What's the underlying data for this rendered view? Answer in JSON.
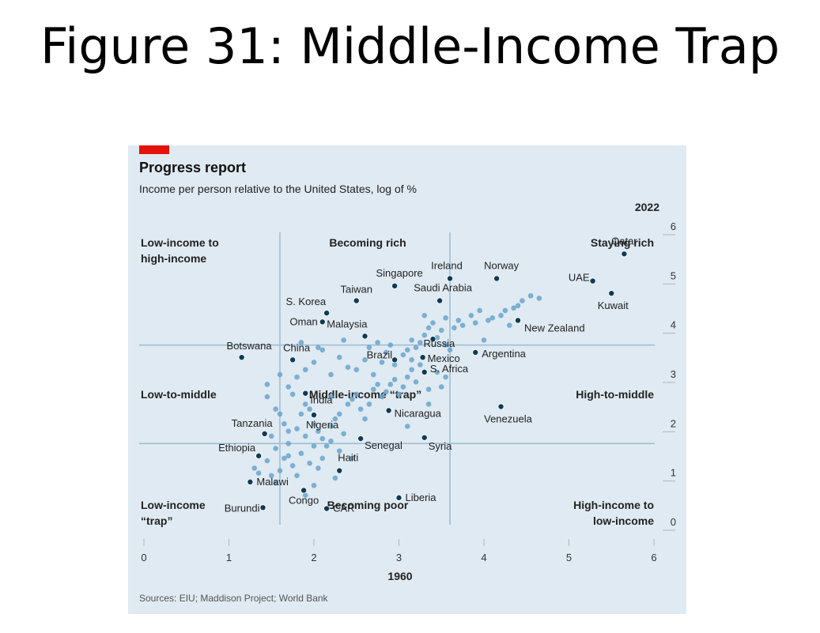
{
  "slide": {
    "title": "Figure 31: Middle-Income Trap"
  },
  "chart_data": {
    "type": "scatter",
    "title": "Progress report",
    "subtitle": "Income per person relative to the United States, log of %",
    "xlabel": "1960",
    "ylabel": "2022",
    "xlim": [
      0,
      6
    ],
    "ylim": [
      0,
      6
    ],
    "x_ticks": [
      "0",
      "1",
      "2",
      "3",
      "4",
      "5",
      "6"
    ],
    "y_ticks": [
      "0",
      "1",
      "2",
      "3",
      "4",
      "5",
      "6"
    ],
    "thresholds": {
      "x": [
        1.6,
        3.6
      ],
      "y": [
        1.6,
        3.6
      ]
    },
    "quadrant_labels": [
      {
        "id": "low-to-high",
        "lines": [
          "Low-income to",
          "high-income"
        ]
      },
      {
        "id": "becoming-rich",
        "lines": [
          "Becoming rich"
        ]
      },
      {
        "id": "staying-rich",
        "lines": [
          "Staying rich"
        ]
      },
      {
        "id": "low-to-middle",
        "lines": [
          "Low-to-middle"
        ]
      },
      {
        "id": "middle-trap",
        "lines": [
          "Middle-income “trap”"
        ]
      },
      {
        "id": "high-to-middle",
        "lines": [
          "High-to-middle"
        ]
      },
      {
        "id": "low-trap",
        "lines": [
          "Low-income",
          "“trap”"
        ]
      },
      {
        "id": "becoming-poor",
        "lines": [
          "Becoming poor"
        ]
      },
      {
        "id": "high-to-low",
        "lines": [
          "High-income to",
          "low-income"
        ]
      }
    ],
    "highlighted": [
      {
        "name": "Qatar",
        "x": 5.65,
        "y": 5.45
      },
      {
        "name": "UAE",
        "x": 5.28,
        "y": 4.9
      },
      {
        "name": "Kuwait",
        "x": 5.5,
        "y": 4.65
      },
      {
        "name": "Norway",
        "x": 4.15,
        "y": 4.95
      },
      {
        "name": "Ireland",
        "x": 3.6,
        "y": 4.95
      },
      {
        "name": "Singapore",
        "x": 2.95,
        "y": 4.8
      },
      {
        "name": "Taiwan",
        "x": 2.5,
        "y": 4.5
      },
      {
        "name": "Saudi Arabia",
        "x": 3.48,
        "y": 4.5
      },
      {
        "name": "S. Korea",
        "x": 2.15,
        "y": 4.25
      },
      {
        "name": "Oman",
        "x": 2.1,
        "y": 4.07
      },
      {
        "name": "Malaysia",
        "x": 2.6,
        "y": 3.78
      },
      {
        "name": "New Zealand",
        "x": 4.4,
        "y": 4.1
      },
      {
        "name": "Russia",
        "x": 3.4,
        "y": 3.72
      },
      {
        "name": "Brazil",
        "x": 2.95,
        "y": 3.3
      },
      {
        "name": "Mexico",
        "x": 3.28,
        "y": 3.35
      },
      {
        "name": "S. Africa",
        "x": 3.3,
        "y": 3.05
      },
      {
        "name": "Argentina",
        "x": 3.9,
        "y": 3.45
      },
      {
        "name": "Botswana",
        "x": 1.15,
        "y": 3.35
      },
      {
        "name": "China",
        "x": 1.75,
        "y": 3.3
      },
      {
        "name": "India",
        "x": 1.9,
        "y": 2.62
      },
      {
        "name": "Nigeria",
        "x": 2.0,
        "y": 2.18
      },
      {
        "name": "Nicaragua",
        "x": 2.88,
        "y": 2.27
      },
      {
        "name": "Venezuela",
        "x": 4.2,
        "y": 2.35
      },
      {
        "name": "Tanzania",
        "x": 1.42,
        "y": 1.8
      },
      {
        "name": "Senegal",
        "x": 2.55,
        "y": 1.7
      },
      {
        "name": "Syria",
        "x": 3.3,
        "y": 1.72
      },
      {
        "name": "Ethiopia",
        "x": 1.35,
        "y": 1.35
      },
      {
        "name": "Haiti",
        "x": 2.3,
        "y": 1.05
      },
      {
        "name": "Malawi",
        "x": 1.25,
        "y": 0.82
      },
      {
        "name": "Congo",
        "x": 1.88,
        "y": 0.65
      },
      {
        "name": "Liberia",
        "x": 3.0,
        "y": 0.5
      },
      {
        "name": "Burundi",
        "x": 1.4,
        "y": 0.3
      },
      {
        "name": "CAR",
        "x": 2.15,
        "y": 0.28
      }
    ],
    "others": [
      [
        1.45,
        2.8
      ],
      [
        1.45,
        2.55
      ],
      [
        1.55,
        2.3
      ],
      [
        1.6,
        2.2
      ],
      [
        1.65,
        2.0
      ],
      [
        1.7,
        1.85
      ],
      [
        1.8,
        1.9
      ],
      [
        1.85,
        2.2
      ],
      [
        1.9,
        2.4
      ],
      [
        1.95,
        2.3
      ],
      [
        2.0,
        2.0
      ],
      [
        2.05,
        1.85
      ],
      [
        2.1,
        1.7
      ],
      [
        2.15,
        1.55
      ],
      [
        2.2,
        1.95
      ],
      [
        2.25,
        2.1
      ],
      [
        2.3,
        2.2
      ],
      [
        2.35,
        1.8
      ],
      [
        2.4,
        2.4
      ],
      [
        2.45,
        2.5
      ],
      [
        2.5,
        2.6
      ],
      [
        2.55,
        2.3
      ],
      [
        2.6,
        2.1
      ],
      [
        2.65,
        2.4
      ],
      [
        2.7,
        2.7
      ],
      [
        2.75,
        2.8
      ],
      [
        2.8,
        2.55
      ],
      [
        2.85,
        2.65
      ],
      [
        2.9,
        2.8
      ],
      [
        2.95,
        2.9
      ],
      [
        3.0,
        2.6
      ],
      [
        3.05,
        2.75
      ],
      [
        3.1,
        2.95
      ],
      [
        3.15,
        3.1
      ],
      [
        3.2,
        2.85
      ],
      [
        3.25,
        3.2
      ],
      [
        3.35,
        2.7
      ],
      [
        3.45,
        3.05
      ],
      [
        3.5,
        2.75
      ],
      [
        3.55,
        2.95
      ],
      [
        1.6,
        3.0
      ],
      [
        1.7,
        2.75
      ],
      [
        1.75,
        2.6
      ],
      [
        1.8,
        2.95
      ],
      [
        1.9,
        3.1
      ],
      [
        2.0,
        3.25
      ],
      [
        2.1,
        3.5
      ],
      [
        2.2,
        3.0
      ],
      [
        2.3,
        3.35
      ],
      [
        2.4,
        3.15
      ],
      [
        2.5,
        3.1
      ],
      [
        2.6,
        3.3
      ],
      [
        2.7,
        3.0
      ],
      [
        2.8,
        3.25
      ],
      [
        2.85,
        3.45
      ],
      [
        2.9,
        3.6
      ],
      [
        2.95,
        3.2
      ],
      [
        3.05,
        3.4
      ],
      [
        3.1,
        3.5
      ],
      [
        3.15,
        3.3
      ],
      [
        3.2,
        3.55
      ],
      [
        3.25,
        3.65
      ],
      [
        3.3,
        3.8
      ],
      [
        3.35,
        3.95
      ],
      [
        3.45,
        3.75
      ],
      [
        3.5,
        3.9
      ],
      [
        3.55,
        3.6
      ],
      [
        3.6,
        3.5
      ],
      [
        3.65,
        3.95
      ],
      [
        3.7,
        4.1
      ],
      [
        3.75,
        4.0
      ],
      [
        3.85,
        4.2
      ],
      [
        3.9,
        4.05
      ],
      [
        3.95,
        4.3
      ],
      [
        4.0,
        3.7
      ],
      [
        4.05,
        4.1
      ],
      [
        4.1,
        4.15
      ],
      [
        4.2,
        4.2
      ],
      [
        4.25,
        4.3
      ],
      [
        4.3,
        4.0
      ],
      [
        4.35,
        4.35
      ],
      [
        4.4,
        4.4
      ],
      [
        4.45,
        4.5
      ],
      [
        4.55,
        4.6
      ],
      [
        4.65,
        4.55
      ],
      [
        3.3,
        4.2
      ],
      [
        3.4,
        4.05
      ],
      [
        3.55,
        4.15
      ],
      [
        1.85,
        3.65
      ],
      [
        2.05,
        3.55
      ],
      [
        2.35,
        3.7
      ],
      [
        2.65,
        3.55
      ],
      [
        2.75,
        3.65
      ],
      [
        3.15,
        3.7
      ],
      [
        1.3,
        1.1
      ],
      [
        1.35,
        1.0
      ],
      [
        1.45,
        1.25
      ],
      [
        1.5,
        0.95
      ],
      [
        1.55,
        1.5
      ],
      [
        1.6,
        1.05
      ],
      [
        1.65,
        1.3
      ],
      [
        1.7,
        1.6
      ],
      [
        1.75,
        1.15
      ],
      [
        1.8,
        0.95
      ],
      [
        1.85,
        1.4
      ],
      [
        1.95,
        1.2
      ],
      [
        2.0,
        1.55
      ],
      [
        2.1,
        1.3
      ],
      [
        2.2,
        1.65
      ],
      [
        2.25,
        0.9
      ],
      [
        2.3,
        1.45
      ],
      [
        2.45,
        1.3
      ],
      [
        1.5,
        1.75
      ],
      [
        1.7,
        1.35
      ],
      [
        1.9,
        1.75
      ],
      [
        2.05,
        1.1
      ],
      [
        1.55,
        0.8
      ],
      [
        2.0,
        0.75
      ],
      [
        3.1,
        1.95
      ],
      [
        3.35,
        2.4
      ],
      [
        2.2,
        2.55
      ],
      [
        1.9,
        0.55
      ]
    ],
    "source": "Sources: EIU; Maddison Project; World Bank"
  }
}
